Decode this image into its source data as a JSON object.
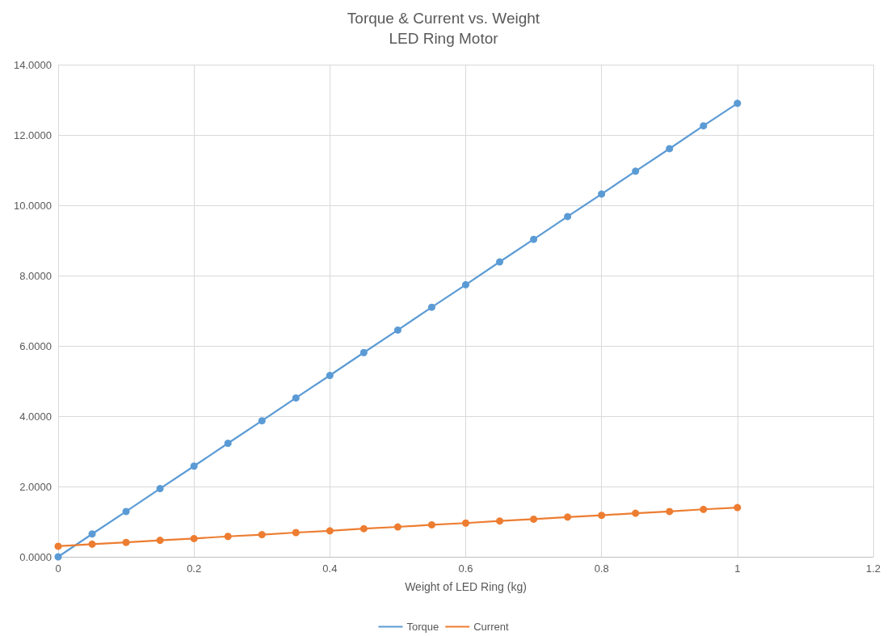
{
  "chart_data": {
    "type": "line",
    "title": "Torque & Current vs. Weight",
    "subtitle": "LED Ring Motor",
    "xlabel": "Weight of LED Ring (kg)",
    "x": [
      0,
      0.05,
      0.1,
      0.15,
      0.2,
      0.25,
      0.3,
      0.35,
      0.4,
      0.45,
      0.5,
      0.55,
      0.6,
      0.65,
      0.7,
      0.75,
      0.8,
      0.85,
      0.9,
      0.95,
      1
    ],
    "series": [
      {
        "name": "Torque",
        "color": "#5b9bd5",
        "values": [
          0,
          0.65,
          1.29,
          1.94,
          2.58,
          3.23,
          3.87,
          4.52,
          5.16,
          5.81,
          6.45,
          7.1,
          7.74,
          8.39,
          9.03,
          9.68,
          10.32,
          10.97,
          11.61,
          12.26,
          12.9
        ]
      },
      {
        "name": "Current",
        "color": "#ed7d31",
        "values": [
          0.3,
          0.36,
          0.41,
          0.47,
          0.52,
          0.58,
          0.63,
          0.69,
          0.74,
          0.8,
          0.85,
          0.91,
          0.96,
          1.02,
          1.07,
          1.13,
          1.18,
          1.24,
          1.29,
          1.35,
          1.4
        ]
      }
    ],
    "xlim": [
      0,
      1.2
    ],
    "xticks": [
      0,
      0.2,
      0.4,
      0.6,
      0.8,
      1,
      1.2
    ],
    "ylim": [
      0,
      14
    ],
    "yticks": [
      {
        "value": 0,
        "label": "0.0000"
      },
      {
        "value": 2,
        "label": "2.0000"
      },
      {
        "value": 4,
        "label": "4.0000"
      },
      {
        "value": 6,
        "label": "6.0000"
      },
      {
        "value": 8,
        "label": "8.0000"
      },
      {
        "value": 10,
        "label": "10.0000"
      },
      {
        "value": 12,
        "label": "12.0000"
      },
      {
        "value": 14,
        "label": "14.0000"
      }
    ],
    "grid": true,
    "legend": "bottom",
    "marker": "circle",
    "line_style": "solid"
  }
}
